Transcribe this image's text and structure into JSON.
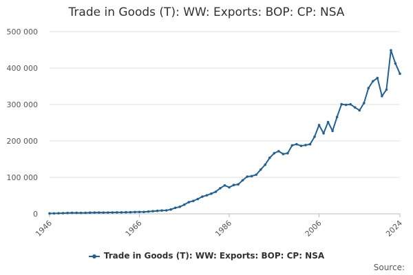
{
  "chart_data": {
    "type": "line",
    "title": "Trade in Goods (T): WW: Exports: BOP: CP: NSA",
    "xlabel": "",
    "ylabel": "",
    "x_ticks": [
      "1946",
      "1966",
      "1986",
      "2006",
      "2024"
    ],
    "y_ticks": [
      "0",
      "100 000",
      "200 000",
      "300 000",
      "400 000",
      "500 000"
    ],
    "xlim": [
      1946,
      2024
    ],
    "ylim": [
      0,
      500000
    ],
    "grid": true,
    "legend_position": "bottom",
    "series": [
      {
        "name": "Trade in Goods (T): WW: Exports: BOP: CP: NSA",
        "color": "#206095",
        "x": [
          1946,
          1947,
          1948,
          1949,
          1950,
          1951,
          1952,
          1953,
          1954,
          1955,
          1956,
          1957,
          1958,
          1959,
          1960,
          1961,
          1962,
          1963,
          1964,
          1965,
          1966,
          1967,
          1968,
          1969,
          1970,
          1971,
          1972,
          1973,
          1974,
          1975,
          1976,
          1977,
          1978,
          1979,
          1980,
          1981,
          1982,
          1983,
          1984,
          1985,
          1986,
          1987,
          1988,
          1989,
          1990,
          1991,
          1992,
          1993,
          1994,
          1995,
          1996,
          1997,
          1998,
          1999,
          2000,
          2001,
          2002,
          2003,
          2004,
          2005,
          2006,
          2007,
          2008,
          2009,
          2010,
          2011,
          2012,
          2013,
          2014,
          2015,
          2016,
          2017,
          2018,
          2019,
          2020,
          2021,
          2022,
          2023,
          2024
        ],
        "values": [
          1000,
          1200,
          1600,
          1800,
          2200,
          2700,
          2700,
          2600,
          2700,
          3100,
          3400,
          3500,
          3400,
          3500,
          3700,
          3900,
          4000,
          4300,
          4500,
          4900,
          5200,
          5200,
          6300,
          7100,
          8100,
          9100,
          9400,
          11900,
          16400,
          19300,
          25200,
          32000,
          35400,
          40500,
          47100,
          50700,
          55300,
          60500,
          70300,
          77900,
          72600,
          79100,
          80800,
          92200,
          102000,
          103400,
          107300,
          121400,
          134700,
          153600,
          166200,
          171900,
          164100,
          166200,
          187900,
          191000,
          186500,
          188600,
          190900,
          211600,
          243600,
          220900,
          251900,
          227500,
          265700,
          300800,
          299000,
          300500,
          291900,
          284000,
          303900,
          345000,
          363900,
          372800,
          323000,
          340700,
          448800,
          412400,
          384500
        ]
      }
    ]
  },
  "legend": {
    "label": "Trade in Goods (T): WW: Exports: BOP: CP: NSA"
  },
  "source": {
    "label": "Source:"
  }
}
